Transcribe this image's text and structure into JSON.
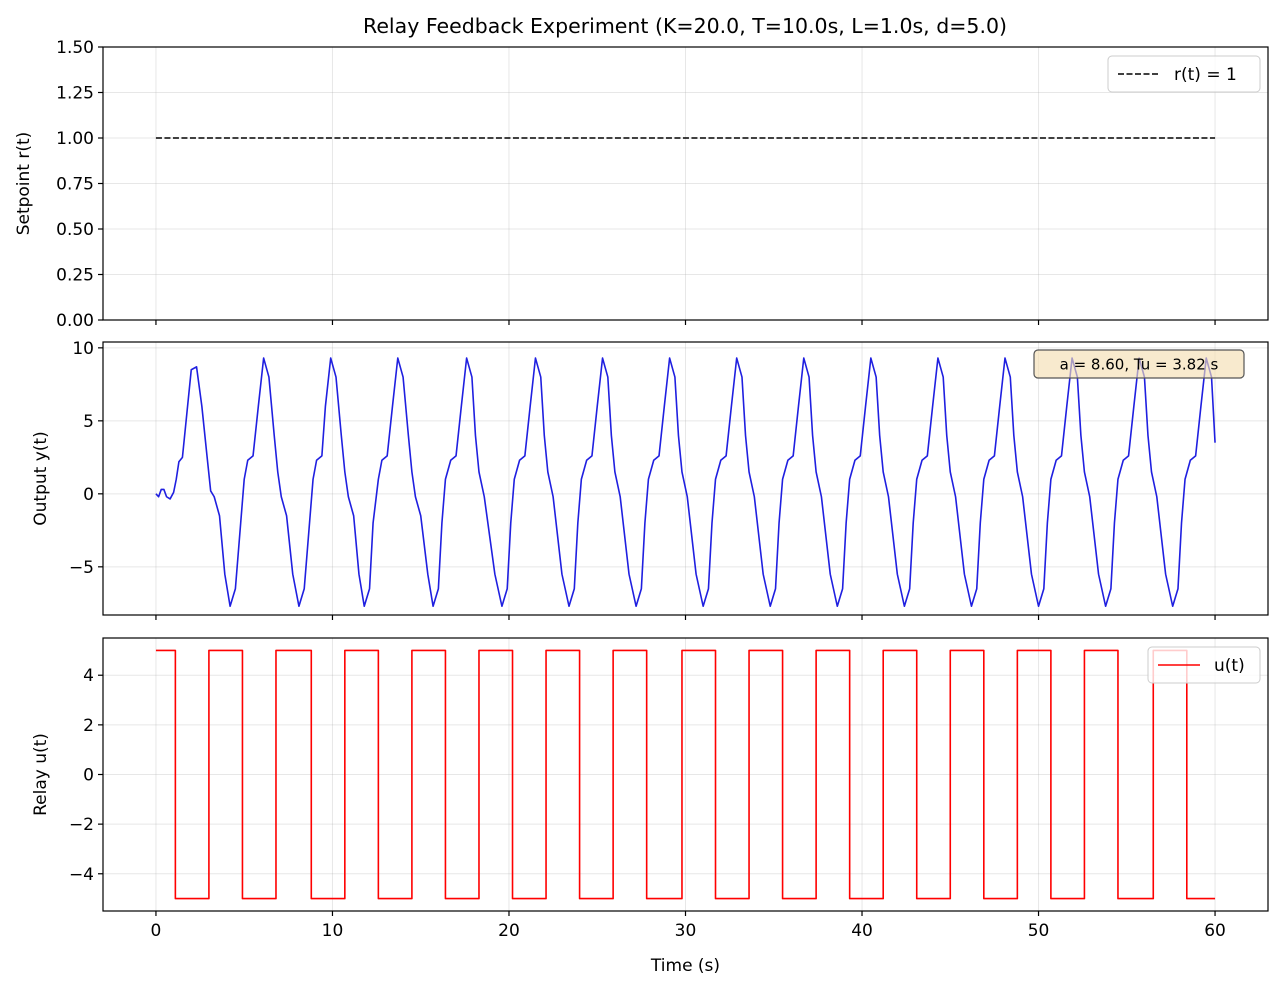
{
  "chart_data": [
    {
      "type": "line",
      "title": "Relay Feedback Experiment (K=20.0, T=10.0s, L=1.0s, d=5.0)",
      "xlabel": "",
      "ylabel": "Setpoint r(t)",
      "xlim": [
        -3,
        63
      ],
      "ylim": [
        0,
        1.5
      ],
      "xticks": [
        0,
        10,
        20,
        30,
        40,
        50,
        60
      ],
      "xtick_labels": [
        "",
        "",
        "",
        "",
        "",
        "",
        ""
      ],
      "yticks": [
        0,
        0.25,
        0.5,
        0.75,
        1.0,
        1.25,
        1.5
      ],
      "ytick_labels": [
        "0.00",
        "0.25",
        "0.50",
        "0.75",
        "1.00",
        "1.25",
        "1.50"
      ],
      "grid": true,
      "legend_position": "upper right",
      "series": [
        {
          "name": "r(t) = 1",
          "color": "#000000",
          "style": "dashed",
          "x": [
            0,
            60
          ],
          "y": [
            1.0,
            1.0
          ]
        }
      ]
    },
    {
      "type": "line",
      "title": "",
      "xlabel": "",
      "ylabel": "Output y(t)",
      "xlim": [
        -3,
        63
      ],
      "ylim": [
        -8.3,
        10.4
      ],
      "xticks": [
        0,
        10,
        20,
        30,
        40,
        50,
        60
      ],
      "xtick_labels": [
        "",
        "",
        "",
        "",
        "",
        "",
        ""
      ],
      "yticks": [
        -5,
        0,
        5,
        10
      ],
      "ytick_labels": [
        "−5",
        "0",
        "5",
        "10"
      ],
      "grid": true,
      "annotation": "a = 8.60, Tu = 3.82 s",
      "series": [
        {
          "color": "#1f1fe0",
          "style": "solid",
          "x": [
            0,
            0.15,
            0.3,
            0.45,
            0.6,
            0.8,
            1.0,
            1.15,
            1.3,
            1.5,
            1.75,
            2.0,
            2.3,
            2.6,
            2.9,
            3.1,
            3.3,
            3.6,
            3.9,
            4.2,
            4.5,
            4.8,
            5.0,
            5.2,
            5.5,
            5.8,
            6.1,
            6.4,
            6.7,
            6.9,
            7.1,
            7.4,
            7.75,
            8.1,
            8.4,
            8.7,
            8.9,
            9.1,
            9.4,
            9.6,
            9.9,
            10.2,
            10.5,
            10.7,
            10.9,
            11.2,
            11.5,
            11.8,
            12.1,
            12.3,
            12.6,
            12.8,
            13.1,
            13.4,
            13.7,
            14.0,
            14.3,
            14.5,
            14.7,
            15.0,
            15.4,
            15.7,
            16.0,
            16.2,
            16.4,
            16.7,
            17.0,
            17.3,
            17.6,
            17.9,
            18.1,
            18.3,
            18.6,
            19.2,
            19.6,
            19.9,
            20.1,
            20.3,
            20.6,
            20.9,
            21.2,
            21.5,
            21.8,
            22.0,
            22.2,
            22.5,
            23.0,
            23.4,
            23.7,
            23.9,
            24.1,
            24.4,
            24.7,
            25.0,
            25.3,
            25.6,
            25.8,
            26.0,
            26.3,
            26.8,
            27.2,
            27.5,
            27.7,
            27.9,
            28.2,
            28.5,
            28.8,
            29.1,
            29.4,
            29.6,
            29.8,
            30.1,
            30.6,
            31.0,
            31.3,
            31.5,
            31.7,
            32.0,
            32.3,
            32.6,
            32.9,
            33.2,
            33.4,
            33.6,
            33.9,
            34.4,
            34.8,
            35.1,
            35.3,
            35.5,
            35.8,
            36.1,
            36.4,
            36.7,
            37.0,
            37.2,
            37.4,
            37.7,
            38.2,
            38.6,
            38.9,
            39.1,
            39.3,
            39.6,
            39.9,
            40.2,
            40.5,
            40.8,
            41.0,
            41.2,
            41.5,
            42.0,
            42.4,
            42.7,
            42.9,
            43.1,
            43.4,
            43.7,
            44.0,
            44.3,
            44.6,
            44.8,
            45.0,
            45.3,
            45.8,
            46.2,
            46.5,
            46.7,
            46.9,
            47.2,
            47.5,
            47.8,
            48.1,
            48.4,
            48.6,
            48.8,
            49.1,
            49.6,
            50.0,
            50.3,
            50.5,
            50.7,
            51.0,
            51.3,
            51.6,
            51.9,
            52.2,
            52.4,
            52.6,
            52.9,
            53.4,
            53.8,
            54.1,
            54.3,
            54.5,
            54.8,
            55.1,
            55.4,
            55.7,
            56.0,
            56.2,
            56.4,
            56.7,
            57.2,
            57.6,
            57.9,
            58.1,
            58.3,
            58.6,
            58.9,
            59.2,
            59.5,
            59.8,
            60.0
          ],
          "y": [
            0,
            -0.2,
            0.3,
            0.3,
            -0.2,
            -0.35,
            0.1,
            1.0,
            2.2,
            2.5,
            5.5,
            8.5,
            8.7,
            6.0,
            2.5,
            0.2,
            -0.2,
            -1.5,
            -5.5,
            -7.7,
            -6.5,
            -2.0,
            1.0,
            2.3,
            2.6,
            6.0,
            9.3,
            8.0,
            4.0,
            1.5,
            -0.2,
            -1.5,
            -5.5,
            -7.7,
            -6.5,
            -2.0,
            1.0,
            2.3,
            2.6,
            6.0,
            9.3,
            8.0,
            4.0,
            1.5,
            -0.2,
            -1.5,
            -5.5,
            -7.7,
            -6.5,
            -2.0,
            1.0,
            2.3,
            2.6,
            6.0,
            9.3,
            8.0,
            4.0,
            1.5,
            -0.2,
            -1.5,
            -5.5,
            -7.7,
            -6.5,
            -2.0,
            1.0,
            2.3,
            2.6,
            6.0,
            9.3,
            8.0,
            4.0,
            1.5,
            -0.2,
            -5.5,
            -7.7,
            -6.5,
            -2.0,
            1.0,
            2.3,
            2.6,
            6.0,
            9.3,
            8.0,
            4.0,
            1.5,
            -0.2,
            -5.5,
            -7.7,
            -6.5,
            -2.0,
            1.0,
            2.3,
            2.6,
            6.0,
            9.3,
            8.0,
            4.0,
            1.5,
            -0.2,
            -5.5,
            -7.7,
            -6.5,
            -2.0,
            1.0,
            2.3,
            2.6,
            6.0,
            9.3,
            8.0,
            4.0,
            1.5,
            -0.2,
            -5.5,
            -7.7,
            -6.5,
            -2.0,
            1.0,
            2.3,
            2.6,
            6.0,
            9.3,
            8.0,
            4.0,
            1.5,
            -0.2,
            -5.5,
            -7.7,
            -6.5,
            -2.0,
            1.0,
            2.3,
            2.6,
            6.0,
            9.3,
            8.0,
            4.0,
            1.5,
            -0.2,
            -5.5,
            -7.7,
            -6.5,
            -2.0,
            1.0,
            2.3,
            2.6,
            6.0,
            9.3,
            8.0,
            4.0,
            1.5,
            -0.2,
            -5.5,
            -7.7,
            -6.5,
            -2.0,
            1.0,
            2.3,
            2.6,
            6.0,
            9.3,
            8.0,
            4.0,
            1.5,
            -0.2,
            -5.5,
            -7.7,
            -6.5,
            -2.0,
            1.0,
            2.3,
            2.6,
            6.0,
            9.3,
            8.0,
            4.0,
            1.5,
            -0.2,
            -5.5,
            -7.7,
            -6.5,
            -2.0,
            1.0,
            2.3,
            2.6,
            6.0,
            9.3,
            8.0,
            4.0,
            1.5,
            -0.2,
            -5.5,
            -7.7,
            -6.5,
            -2.0,
            1.0,
            2.3,
            2.6,
            6.0,
            9.3,
            8.0,
            4.0,
            1.5,
            -0.2,
            -5.5,
            -7.7,
            -6.5,
            -2.0,
            1.0,
            2.3,
            2.6,
            6.0,
            9.3,
            8.0,
            3.5
          ]
        }
      ]
    },
    {
      "type": "line",
      "title": "",
      "xlabel": "Time (s)",
      "ylabel": "Relay u(t)",
      "xlim": [
        -3,
        63
      ],
      "ylim": [
        -5.5,
        5.5
      ],
      "xticks": [
        0,
        10,
        20,
        30,
        40,
        50,
        60
      ],
      "xtick_labels": [
        "0",
        "10",
        "20",
        "30",
        "40",
        "50",
        "60"
      ],
      "yticks": [
        -4,
        -2,
        0,
        2,
        4
      ],
      "ytick_labels": [
        "−4",
        "−2",
        "0",
        "2",
        "4"
      ],
      "grid": true,
      "legend_position": "upper right",
      "series": [
        {
          "name": "u(t)",
          "color": "#ff0000",
          "style": "solid",
          "x": [
            0,
            1.1,
            1.1,
            3.0,
            3.0,
            4.9,
            4.9,
            6.8,
            6.8,
            8.8,
            8.8,
            10.7,
            10.7,
            12.6,
            12.6,
            14.5,
            14.5,
            16.4,
            16.4,
            18.3,
            18.3,
            20.2,
            20.2,
            22.1,
            22.1,
            24.0,
            24.0,
            25.9,
            25.9,
            27.8,
            27.8,
            29.8,
            29.8,
            31.7,
            31.7,
            33.6,
            33.6,
            35.5,
            35.5,
            37.4,
            37.4,
            39.3,
            39.3,
            41.2,
            41.2,
            43.1,
            43.1,
            45.0,
            45.0,
            46.9,
            46.9,
            48.8,
            48.8,
            50.7,
            50.7,
            52.6,
            52.6,
            54.5,
            54.5,
            56.5,
            56.5,
            58.4,
            58.4,
            60.0
          ],
          "y": [
            5,
            5,
            -5,
            -5,
            5,
            5,
            -5,
            -5,
            5,
            5,
            -5,
            -5,
            5,
            5,
            -5,
            -5,
            5,
            5,
            -5,
            -5,
            5,
            5,
            -5,
            -5,
            5,
            5,
            -5,
            -5,
            5,
            5,
            -5,
            -5,
            5,
            5,
            -5,
            -5,
            5,
            5,
            -5,
            -5,
            5,
            5,
            -5,
            -5,
            5,
            5,
            -5,
            -5,
            5,
            5,
            -5,
            -5,
            5,
            5,
            -5,
            -5,
            5,
            5,
            -5,
            -5,
            5,
            5,
            -5,
            -5
          ]
        }
      ]
    }
  ]
}
